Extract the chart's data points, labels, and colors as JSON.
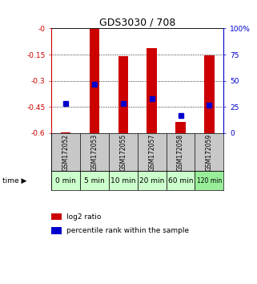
{
  "title": "GDS3030 / 708",
  "samples": [
    "GSM172052",
    "GSM172053",
    "GSM172055",
    "GSM172057",
    "GSM172058",
    "GSM172059"
  ],
  "time_labels": [
    "0 min",
    "5 min",
    "10 min",
    "20 min",
    "60 min",
    "120 min"
  ],
  "log2_ratio": [
    -0.595,
    -0.005,
    -0.16,
    -0.115,
    -0.535,
    -0.155
  ],
  "percentile_rank": [
    28,
    47,
    28,
    33,
    17,
    27
  ],
  "ylim_left": [
    -0.6,
    0.0
  ],
  "ylim_right": [
    0,
    100
  ],
  "yticks_left": [
    -0.6,
    -0.45,
    -0.3,
    -0.15,
    0.0
  ],
  "ytick_labels_left": [
    "-0.6",
    "-0.45",
    "-0.3",
    "-0.15",
    "-0"
  ],
  "yticks_right": [
    0,
    25,
    50,
    75,
    100
  ],
  "ytick_labels_right": [
    "0",
    "25",
    "50",
    "75",
    "100%"
  ],
  "bar_color": "#cc0000",
  "dot_color": "#0000cc",
  "bar_width": 0.35,
  "left_axis_color": "#cc0000",
  "right_axis_color": "#0000cc",
  "bg_color": "#ffffff",
  "gsm_bg_color": "#c8c8c8",
  "time_bg_color_light": "#ccffcc",
  "time_bg_color_dark": "#99ee99",
  "legend_bar_label": "log2 ratio",
  "legend_dot_label": "percentile rank within the sample"
}
